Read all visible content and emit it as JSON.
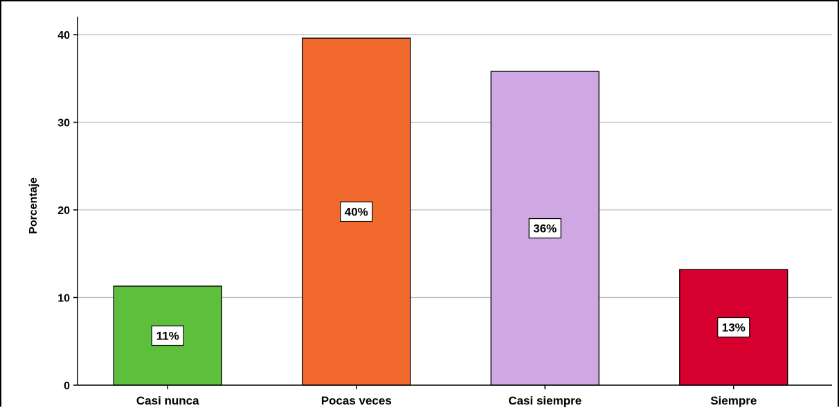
{
  "chart_data": {
    "type": "bar",
    "categories": [
      "Casi nunca",
      "Pocas veces",
      "Casi siempre",
      "Siempre"
    ],
    "values": [
      11.3,
      39.6,
      35.8,
      13.2
    ],
    "data_labels": [
      "11%",
      "40%",
      "36%",
      "13%"
    ],
    "colors": [
      "#5dbf3c",
      "#f2692d",
      "#cfa8e3",
      "#d6002e"
    ],
    "title": "",
    "xlabel": "",
    "ylabel": "Porcentaje",
    "ylim": [
      0,
      42
    ],
    "yticks": [
      0,
      10,
      20,
      30,
      40
    ],
    "ytick_labels": [
      "0",
      "10",
      "20",
      "30",
      "40"
    ],
    "grid": "horizontal"
  }
}
